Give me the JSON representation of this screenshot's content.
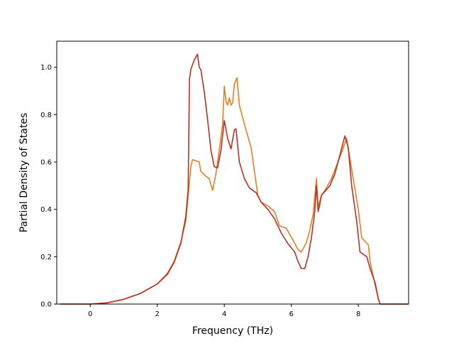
{
  "chart_data": {
    "type": "line",
    "title": "",
    "xlabel": "Frequency (THz)",
    "ylabel": "Partial Density of States",
    "xlim": [
      -1.0,
      9.5
    ],
    "ylim": [
      0.0,
      1.11
    ],
    "xticks": [
      0,
      2,
      4,
      6,
      8
    ],
    "xtick_labels": [
      "0",
      "2",
      "4",
      "6",
      "8"
    ],
    "yticks": [
      0.0,
      0.2,
      0.4,
      0.6,
      0.8,
      1.0
    ],
    "ytick_labels": [
      "0.0",
      "0.2",
      "0.4",
      "0.6",
      "0.8",
      "1.0"
    ],
    "grid": false,
    "legend": "none",
    "series": [
      {
        "color": "#e67e22",
        "points": [
          [
            -0.9,
            0.0
          ],
          [
            0.0,
            0.0
          ],
          [
            0.5,
            0.005
          ],
          [
            1.0,
            0.02
          ],
          [
            1.5,
            0.045
          ],
          [
            2.0,
            0.085
          ],
          [
            2.3,
            0.13
          ],
          [
            2.5,
            0.18
          ],
          [
            2.7,
            0.26
          ],
          [
            2.85,
            0.35
          ],
          [
            2.95,
            0.5
          ],
          [
            3.0,
            0.58
          ],
          [
            3.05,
            0.61
          ],
          [
            3.15,
            0.605
          ],
          [
            3.25,
            0.6
          ],
          [
            3.3,
            0.56
          ],
          [
            3.45,
            0.54
          ],
          [
            3.55,
            0.53
          ],
          [
            3.65,
            0.48
          ],
          [
            3.75,
            0.55
          ],
          [
            3.85,
            0.65
          ],
          [
            3.95,
            0.76
          ],
          [
            4.0,
            0.92
          ],
          [
            4.05,
            0.855
          ],
          [
            4.1,
            0.84
          ],
          [
            4.15,
            0.87
          ],
          [
            4.2,
            0.84
          ],
          [
            4.25,
            0.85
          ],
          [
            4.3,
            0.93
          ],
          [
            4.38,
            0.955
          ],
          [
            4.45,
            0.84
          ],
          [
            4.6,
            0.76
          ],
          [
            4.8,
            0.66
          ],
          [
            4.9,
            0.56
          ],
          [
            5.0,
            0.46
          ],
          [
            5.1,
            0.43
          ],
          [
            5.3,
            0.415
          ],
          [
            5.5,
            0.39
          ],
          [
            5.65,
            0.33
          ],
          [
            5.85,
            0.32
          ],
          [
            6.05,
            0.27
          ],
          [
            6.2,
            0.23
          ],
          [
            6.3,
            0.22
          ],
          [
            6.45,
            0.26
          ],
          [
            6.55,
            0.31
          ],
          [
            6.65,
            0.38
          ],
          [
            6.75,
            0.53
          ],
          [
            6.8,
            0.41
          ],
          [
            6.9,
            0.46
          ],
          [
            7.0,
            0.48
          ],
          [
            7.2,
            0.53
          ],
          [
            7.5,
            0.64
          ],
          [
            7.65,
            0.7
          ],
          [
            7.8,
            0.57
          ],
          [
            8.0,
            0.4
          ],
          [
            8.1,
            0.28
          ],
          [
            8.3,
            0.25
          ],
          [
            8.35,
            0.18
          ],
          [
            8.5,
            0.08
          ],
          [
            8.6,
            0.02
          ],
          [
            8.65,
            0.0
          ],
          [
            9.5,
            0.0
          ]
        ]
      },
      {
        "color": "#b93026",
        "points": [
          [
            -0.9,
            0.0
          ],
          [
            0.0,
            0.0
          ],
          [
            0.5,
            0.005
          ],
          [
            1.0,
            0.02
          ],
          [
            1.5,
            0.045
          ],
          [
            2.0,
            0.085
          ],
          [
            2.3,
            0.125
          ],
          [
            2.5,
            0.175
          ],
          [
            2.7,
            0.255
          ],
          [
            2.85,
            0.37
          ],
          [
            2.92,
            0.48
          ],
          [
            2.96,
            0.95
          ],
          [
            3.0,
            0.99
          ],
          [
            3.1,
            1.03
          ],
          [
            3.2,
            1.055
          ],
          [
            3.25,
            1.0
          ],
          [
            3.3,
            0.99
          ],
          [
            3.4,
            0.9
          ],
          [
            3.5,
            0.78
          ],
          [
            3.6,
            0.65
          ],
          [
            3.7,
            0.58
          ],
          [
            3.8,
            0.575
          ],
          [
            3.9,
            0.65
          ],
          [
            4.0,
            0.775
          ],
          [
            4.1,
            0.7
          ],
          [
            4.2,
            0.655
          ],
          [
            4.3,
            0.735
          ],
          [
            4.35,
            0.74
          ],
          [
            4.45,
            0.6
          ],
          [
            4.6,
            0.53
          ],
          [
            4.75,
            0.49
          ],
          [
            4.95,
            0.47
          ],
          [
            5.1,
            0.43
          ],
          [
            5.3,
            0.4
          ],
          [
            5.5,
            0.36
          ],
          [
            5.7,
            0.3
          ],
          [
            5.9,
            0.255
          ],
          [
            6.1,
            0.22
          ],
          [
            6.2,
            0.18
          ],
          [
            6.3,
            0.15
          ],
          [
            6.4,
            0.15
          ],
          [
            6.5,
            0.2
          ],
          [
            6.6,
            0.28
          ],
          [
            6.7,
            0.39
          ],
          [
            6.75,
            0.5
          ],
          [
            6.8,
            0.39
          ],
          [
            6.85,
            0.42
          ],
          [
            6.9,
            0.46
          ],
          [
            7.0,
            0.475
          ],
          [
            7.15,
            0.5
          ],
          [
            7.3,
            0.55
          ],
          [
            7.45,
            0.63
          ],
          [
            7.6,
            0.71
          ],
          [
            7.7,
            0.66
          ],
          [
            7.8,
            0.5
          ],
          [
            7.95,
            0.35
          ],
          [
            8.05,
            0.22
          ],
          [
            8.25,
            0.2
          ],
          [
            8.35,
            0.15
          ],
          [
            8.5,
            0.09
          ],
          [
            8.6,
            0.02
          ],
          [
            8.65,
            0.0
          ],
          [
            9.5,
            0.0
          ]
        ]
      }
    ]
  }
}
